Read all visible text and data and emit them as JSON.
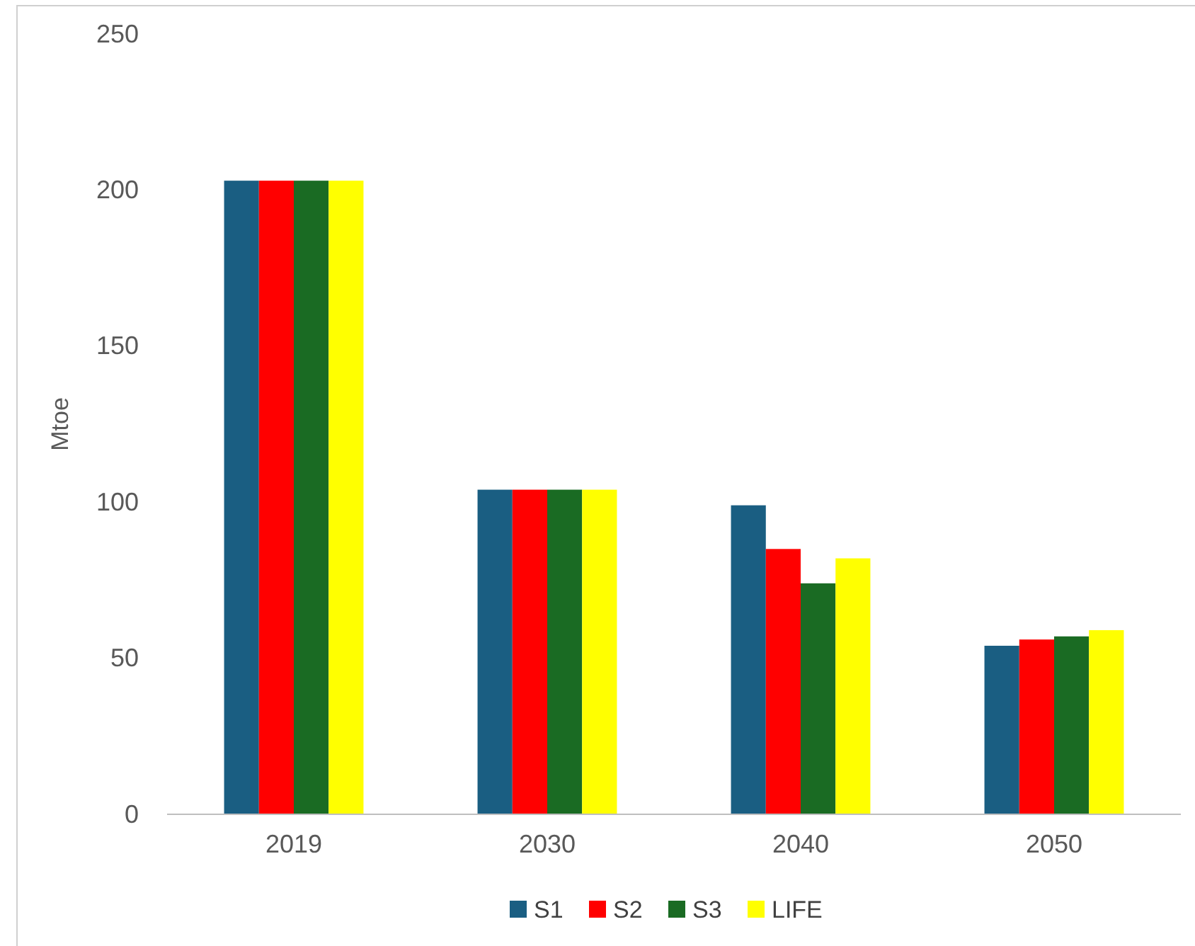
{
  "chart_data": {
    "type": "bar",
    "ylabel": "Mtoe",
    "categories": [
      "2019",
      "2030",
      "2040",
      "2050"
    ],
    "series": [
      {
        "name": "S1",
        "color": "#1a5e82",
        "values": [
          203,
          104,
          99,
          54
        ]
      },
      {
        "name": "S2",
        "color": "#ff0000",
        "values": [
          203,
          104,
          85,
          56
        ]
      },
      {
        "name": "S3",
        "color": "#1a6b23",
        "values": [
          203,
          104,
          74,
          57
        ]
      },
      {
        "name": "LIFE",
        "color": "#ffff00",
        "values": [
          203,
          104,
          82,
          59
        ]
      }
    ],
    "ylim": [
      0,
      250
    ],
    "yticks": [
      0,
      50,
      100,
      150,
      200,
      250
    ],
    "grid": false,
    "legend": "bottom"
  }
}
